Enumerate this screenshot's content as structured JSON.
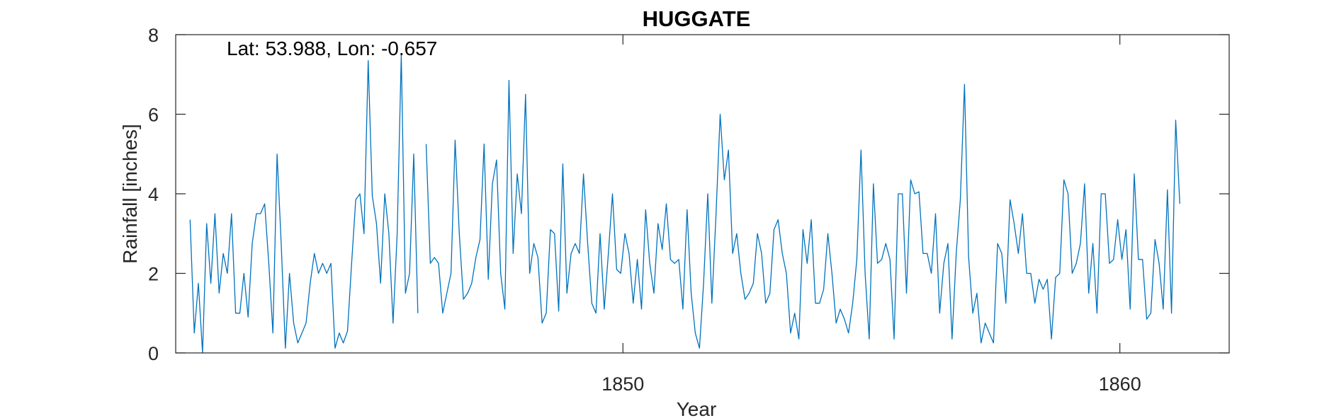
{
  "chart_data": {
    "type": "line",
    "title": "HUGGATE",
    "xlabel": "Year",
    "ylabel": "Rainfall [inches]",
    "annotation": "Lat: 53.988, Lon: -0.657",
    "xlim": [
      1841,
      1862.2
    ],
    "ylim": [
      0,
      8
    ],
    "xticks": [
      1850,
      1860
    ],
    "xtick_labels": [
      "1850",
      "1860"
    ],
    "yticks": [
      0,
      2,
      4,
      6,
      8
    ],
    "ytick_labels": [
      "0",
      "2",
      "4",
      "6",
      "8"
    ],
    "grid": false,
    "line_color": "#0072BD",
    "series": [
      {
        "x_start": 1841.29,
        "x_step": 0.0833333,
        "values": [
          3.35,
          0.5,
          1.75,
          0.0,
          3.25,
          1.75,
          3.5,
          1.5,
          2.5,
          2.0,
          3.5,
          1.0,
          1.0,
          2.0,
          0.9,
          2.75,
          3.5,
          3.5,
          3.75,
          2.25,
          0.5,
          5.0,
          2.75,
          0.12,
          2.0,
          0.75,
          0.25,
          0.5,
          0.75,
          1.75,
          2.5,
          2.0,
          2.25,
          2.0,
          2.25,
          0.12,
          0.5,
          0.25,
          0.55,
          2.25,
          3.85,
          4.0,
          3.0,
          7.35,
          3.95,
          3.25,
          1.75,
          4.0,
          3.0,
          0.75,
          3.0,
          7.5,
          1.5,
          2.0,
          5.0,
          1.0,
          null,
          5.25,
          2.25,
          2.4,
          2.25,
          1.0,
          1.5,
          2.0,
          5.35,
          3.0,
          1.35,
          1.5,
          1.75,
          2.4,
          2.85,
          5.25,
          1.85,
          4.25,
          4.85,
          2.0,
          1.1,
          6.85,
          2.5,
          4.5,
          3.5,
          6.5,
          2.0,
          2.75,
          2.4,
          0.75,
          1.0,
          3.1,
          3.0,
          1.05,
          4.75,
          1.5,
          2.5,
          2.75,
          2.5,
          4.5,
          2.75,
          1.25,
          1.0,
          3.0,
          1.1,
          2.5,
          4.0,
          2.1,
          2.0,
          3.0,
          2.5,
          1.25,
          2.35,
          1.1,
          3.6,
          2.25,
          1.5,
          3.25,
          2.6,
          3.75,
          2.35,
          2.25,
          2.35,
          1.1,
          3.6,
          1.5,
          0.5,
          0.12,
          1.75,
          4.0,
          1.25,
          3.5,
          6.0,
          4.35,
          5.1,
          2.5,
          3.0,
          2.0,
          1.35,
          1.5,
          1.75,
          3.0,
          2.5,
          1.25,
          1.5,
          3.1,
          3.35,
          2.5,
          2.0,
          0.5,
          1.0,
          0.35,
          3.1,
          2.25,
          3.35,
          1.25,
          1.25,
          1.6,
          3.0,
          2.0,
          0.75,
          1.1,
          0.85,
          0.5,
          1.25,
          2.35,
          5.1,
          2.0,
          0.35,
          4.25,
          2.25,
          2.35,
          2.75,
          2.35,
          0.35,
          4.0,
          4.0,
          1.5,
          4.35,
          4.0,
          4.05,
          2.5,
          2.5,
          2.0,
          3.5,
          1.0,
          2.25,
          2.75,
          0.35,
          2.5,
          3.85,
          6.75,
          2.4,
          1.0,
          1.5,
          0.25,
          0.75,
          0.5,
          0.25,
          2.75,
          2.5,
          1.25,
          3.85,
          3.25,
          2.5,
          3.5,
          2.0,
          2.0,
          1.25,
          1.85,
          1.6,
          1.85,
          0.35,
          1.9,
          2.0,
          4.35,
          4.0,
          2.0,
          2.25,
          2.75,
          4.25,
          1.5,
          2.75,
          1.0,
          4.0,
          4.0,
          2.25,
          2.35,
          3.35,
          2.35,
          3.1,
          1.1,
          4.5,
          2.35,
          2.35,
          0.85,
          1.0,
          2.85,
          2.25,
          1.1,
          4.1,
          1.0,
          5.85,
          3.75
        ]
      }
    ]
  }
}
